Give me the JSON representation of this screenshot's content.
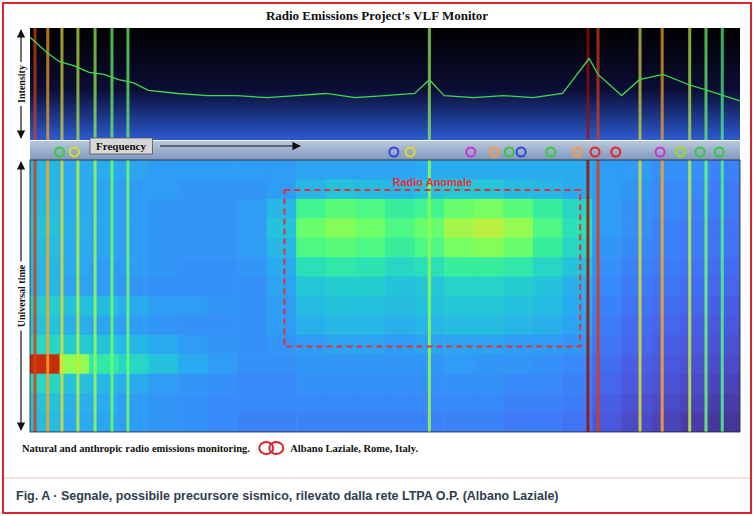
{
  "chart_data": {
    "type": "heatmap",
    "title": "Radio Emissions Project's VLF Monitor",
    "x_label": "Frequency",
    "y_label": "Universal time",
    "intensity_label": "Intensity",
    "annotation": {
      "text": "Radio Anomale",
      "x": [
        8.6,
        18.6
      ],
      "y": [
        1.55,
        9.6
      ]
    },
    "footer": "Natural and anthropic radio emissions monitoring.",
    "location": "Albano Laziale, Rome, Italy.",
    "caption": "Fig. A · Segnale, possibile precursore sismico, rilevato dalla rete LTPA O.P. (Albano Laziale)",
    "tick_labels": false,
    "xlim": [
      0,
      24
    ],
    "ylim": [
      0,
      14
    ],
    "intensity_ylim": [
      0,
      1
    ],
    "color_range": [
      0,
      1
    ],
    "cells": [
      [
        0.24,
        0.22,
        0.22,
        0.21,
        0.2,
        0.2,
        0.2,
        0.2,
        0.2,
        0.21,
        0.21,
        0.21,
        0.21,
        0.22,
        0.22,
        0.22,
        0.22,
        0.22,
        0.22,
        0.2,
        0.2,
        0.18,
        0.18,
        0.16
      ],
      [
        0.24,
        0.22,
        0.21,
        0.2,
        0.2,
        0.19,
        0.19,
        0.19,
        0.2,
        0.24,
        0.26,
        0.25,
        0.24,
        0.26,
        0.27,
        0.27,
        0.25,
        0.24,
        0.22,
        0.2,
        0.19,
        0.17,
        0.17,
        0.15
      ],
      [
        0.25,
        0.22,
        0.21,
        0.2,
        0.19,
        0.19,
        0.19,
        0.2,
        0.24,
        0.38,
        0.42,
        0.4,
        0.36,
        0.38,
        0.44,
        0.46,
        0.42,
        0.36,
        0.3,
        0.2,
        0.18,
        0.17,
        0.16,
        0.15
      ],
      [
        0.26,
        0.23,
        0.21,
        0.2,
        0.19,
        0.19,
        0.19,
        0.2,
        0.26,
        0.44,
        0.48,
        0.45,
        0.4,
        0.44,
        0.52,
        0.55,
        0.5,
        0.4,
        0.32,
        0.2,
        0.18,
        0.16,
        0.15,
        0.14
      ],
      [
        0.25,
        0.22,
        0.21,
        0.2,
        0.19,
        0.19,
        0.19,
        0.2,
        0.24,
        0.4,
        0.42,
        0.4,
        0.36,
        0.4,
        0.46,
        0.48,
        0.44,
        0.36,
        0.3,
        0.19,
        0.17,
        0.16,
        0.15,
        0.14
      ],
      [
        0.24,
        0.22,
        0.2,
        0.2,
        0.19,
        0.18,
        0.18,
        0.19,
        0.22,
        0.32,
        0.34,
        0.33,
        0.3,
        0.32,
        0.36,
        0.36,
        0.34,
        0.3,
        0.26,
        0.18,
        0.16,
        0.15,
        0.14,
        0.13
      ],
      [
        0.24,
        0.21,
        0.2,
        0.19,
        0.18,
        0.18,
        0.18,
        0.18,
        0.21,
        0.27,
        0.28,
        0.28,
        0.26,
        0.27,
        0.29,
        0.29,
        0.28,
        0.26,
        0.23,
        0.17,
        0.15,
        0.14,
        0.13,
        0.12
      ],
      [
        0.28,
        0.26,
        0.25,
        0.22,
        0.2,
        0.2,
        0.19,
        0.18,
        0.2,
        0.25,
        0.26,
        0.26,
        0.25,
        0.26,
        0.27,
        0.27,
        0.26,
        0.25,
        0.22,
        0.16,
        0.14,
        0.13,
        0.12,
        0.11
      ],
      [
        0.26,
        0.23,
        0.21,
        0.2,
        0.19,
        0.18,
        0.18,
        0.18,
        0.2,
        0.23,
        0.24,
        0.24,
        0.23,
        0.24,
        0.25,
        0.25,
        0.24,
        0.23,
        0.21,
        0.15,
        0.13,
        0.12,
        0.11,
        0.1
      ],
      [
        0.3,
        0.28,
        0.26,
        0.24,
        0.22,
        0.2,
        0.19,
        0.18,
        0.19,
        0.2,
        0.21,
        0.21,
        0.2,
        0.21,
        0.21,
        0.21,
        0.2,
        0.2,
        0.19,
        0.14,
        0.12,
        0.11,
        0.1,
        0.09
      ],
      [
        0.88,
        0.5,
        0.34,
        0.3,
        0.26,
        0.22,
        0.2,
        0.18,
        0.18,
        0.19,
        0.19,
        0.19,
        0.19,
        0.19,
        0.2,
        0.19,
        0.19,
        0.18,
        0.17,
        0.13,
        0.11,
        0.1,
        0.09,
        0.08
      ],
      [
        0.3,
        0.26,
        0.24,
        0.22,
        0.2,
        0.19,
        0.18,
        0.17,
        0.17,
        0.18,
        0.18,
        0.18,
        0.18,
        0.18,
        0.18,
        0.18,
        0.17,
        0.17,
        0.16,
        0.12,
        0.1,
        0.09,
        0.08,
        0.07
      ],
      [
        0.26,
        0.23,
        0.22,
        0.2,
        0.19,
        0.18,
        0.17,
        0.17,
        0.17,
        0.17,
        0.17,
        0.17,
        0.17,
        0.17,
        0.17,
        0.17,
        0.16,
        0.16,
        0.15,
        0.11,
        0.09,
        0.08,
        0.07,
        0.06
      ],
      [
        0.25,
        0.22,
        0.21,
        0.2,
        0.19,
        0.18,
        0.17,
        0.16,
        0.16,
        0.16,
        0.16,
        0.16,
        0.16,
        0.16,
        0.16,
        0.16,
        0.15,
        0.15,
        0.14,
        0.1,
        0.08,
        0.07,
        0.06,
        0.05
      ]
    ],
    "lines": {
      "x": [
        0.17,
        0.6,
        1.08,
        1.62,
        2.2,
        2.77,
        3.31,
        13.5,
        18.86,
        19.2,
        20.62,
        21.37,
        22.3,
        22.85,
        23.4
      ],
      "values": [
        0.85,
        0.7,
        0.6,
        0.55,
        0.5,
        0.45,
        0.45,
        0.5,
        0.95,
        0.85,
        0.6,
        0.7,
        0.55,
        0.45,
        0.4
      ]
    },
    "intensity": {
      "x": [
        0,
        0.2,
        0.6,
        1,
        1.5,
        2,
        2.5,
        3,
        3.5,
        4,
        5,
        6,
        7,
        8,
        9,
        10,
        11,
        12,
        13,
        13.5,
        14,
        15,
        16,
        17,
        18,
        18.9,
        19.2,
        20,
        20.6,
        21.4,
        22.3,
        22.9,
        24
      ],
      "y": [
        0.95,
        0.9,
        0.8,
        0.72,
        0.68,
        0.62,
        0.6,
        0.55,
        0.52,
        0.45,
        0.42,
        0.4,
        0.4,
        0.38,
        0.4,
        0.42,
        0.38,
        0.4,
        0.42,
        0.55,
        0.4,
        0.38,
        0.4,
        0.38,
        0.42,
        0.75,
        0.6,
        0.4,
        0.55,
        0.6,
        0.5,
        0.45,
        0.35
      ]
    },
    "markers": {
      "x": [
        1.0,
        1.5,
        12.3,
        12.85,
        14.9,
        15.7,
        16.2,
        16.6,
        17.6,
        18.5,
        19.1,
        19.8,
        21.3,
        22.0,
        22.65,
        23.3
      ],
      "colors": [
        "#33cc33",
        "#dddd22",
        "#3344dd",
        "#dddd22",
        "#cc33cc",
        "#ff9933",
        "#33cc33",
        "#3344dd",
        "#33cc33",
        "#ff9933",
        "#ee2222",
        "#ee2222",
        "#cc33cc",
        "#99dd22",
        "#33cc33",
        "#33cc33"
      ]
    }
  }
}
